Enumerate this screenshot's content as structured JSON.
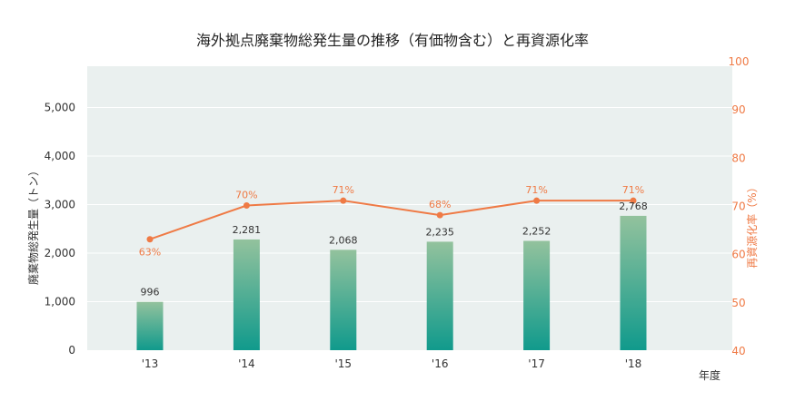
{
  "chart_data": {
    "type": "bar",
    "title": "海外拠点廃棄物総発生量の推移（有価物含む）と再資源化率",
    "categories": [
      "'13",
      "'14",
      "'15",
      "'16",
      "'17",
      "'18"
    ],
    "xlabel": "年度",
    "ylabel": "廃棄物総発生量（トン）",
    "y2label": "再資源化率（%）",
    "ylim": [
      0,
      6000
    ],
    "yticks": [
      "0",
      "1,000",
      "2,000",
      "3,000",
      "4,000",
      "5,000"
    ],
    "y2lim": [
      40,
      100
    ],
    "y2ticks": [
      "40",
      "50",
      "60",
      "70",
      "80",
      "90",
      "100"
    ],
    "series": [
      {
        "name": "廃棄物総発生量",
        "type": "bar",
        "values": [
          996,
          2281,
          2068,
          2235,
          2252,
          2768
        ],
        "labels": [
          "996",
          "2,281",
          "2,068",
          "2,235",
          "2,252",
          "2,768"
        ]
      },
      {
        "name": "再資源化率",
        "type": "line",
        "axis": "right",
        "values": [
          63,
          70,
          71,
          68,
          71,
          71
        ],
        "labels": [
          "63%",
          "70%",
          "71%",
          "68%",
          "71%",
          "71%"
        ]
      }
    ],
    "grid": true,
    "colors": {
      "bar_top": "#93c29d",
      "bar_bottom": "#109a8c",
      "line": "#ef7a45",
      "plot_bg": "#eaf0ef",
      "grid": "#ffffff",
      "axis_text": "#333333"
    }
  }
}
